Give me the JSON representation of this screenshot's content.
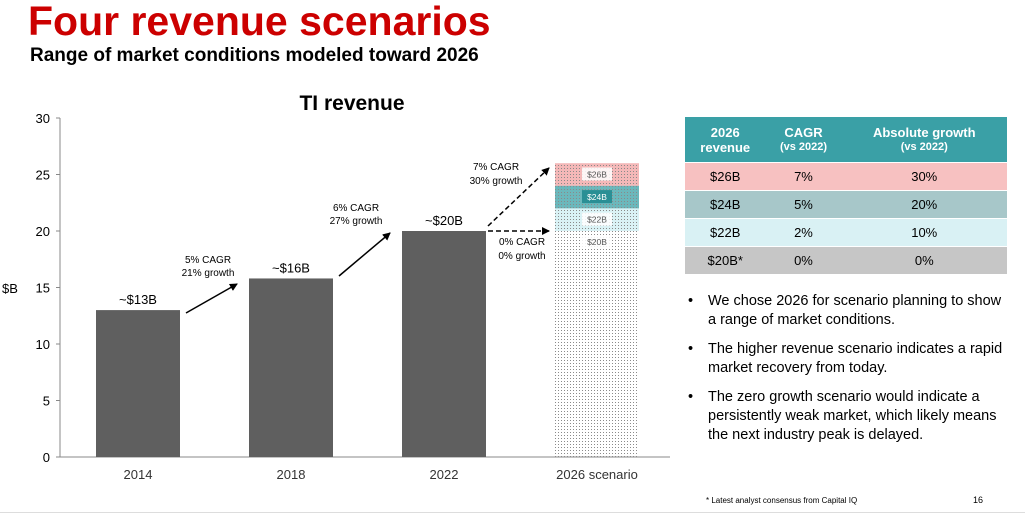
{
  "header": {
    "title": "Four revenue scenarios",
    "subtitle": "Range of market conditions modeled toward 2026"
  },
  "chart_data": {
    "type": "bar",
    "title": "TI revenue",
    "ylabel": "$B",
    "ylim": [
      0,
      30
    ],
    "yticks": [
      0,
      5,
      10,
      15,
      20,
      25,
      30
    ],
    "grid": false,
    "categories": [
      "2014",
      "2018",
      "2022",
      "2026 scenario"
    ],
    "values": [
      13,
      15.8,
      20,
      null
    ],
    "value_labels": [
      "~$13B",
      "~$16B",
      "~$20B",
      ""
    ],
    "bar_color": "#5f5f5f",
    "scenarios": [
      {
        "label": "$26B",
        "value": 26,
        "color": "#f0a0a0"
      },
      {
        "label": "$24B",
        "value": 24,
        "color": "#3aa0a6"
      },
      {
        "label": "$22B",
        "value": 22,
        "color": "#cdeef2"
      },
      {
        "label": "$20B",
        "value": 20,
        "color": "#d0d0d0"
      }
    ],
    "annotations": [
      {
        "line1": "5% CAGR",
        "line2": "21% growth"
      },
      {
        "line1": "6% CAGR",
        "line2": "27% growth"
      },
      {
        "line1": "7% CAGR",
        "line2": "30% growth"
      },
      {
        "line1": "0% CAGR",
        "line2": "0% growth"
      }
    ]
  },
  "table": {
    "headers": [
      {
        "main": "2026",
        "sub": "revenue"
      },
      {
        "main": "CAGR",
        "sub": "(vs 2022)"
      },
      {
        "main": "Absolute growth",
        "sub": "(vs 2022)"
      }
    ],
    "rows": [
      [
        "$26B",
        "7%",
        "30%"
      ],
      [
        "$24B",
        "5%",
        "20%"
      ],
      [
        "$22B",
        "2%",
        "10%"
      ],
      [
        "$20B*",
        "0%",
        "0%"
      ]
    ]
  },
  "bullets": [
    "We chose 2026 for scenario planning to show a range of market conditions.",
    "The higher revenue scenario indicates a rapid market recovery from today.",
    "The zero growth scenario would indicate a persistently weak market, which likely means the next industry peak is delayed."
  ],
  "footnote": "* Latest analyst consensus from Capital IQ",
  "page_number": "16"
}
